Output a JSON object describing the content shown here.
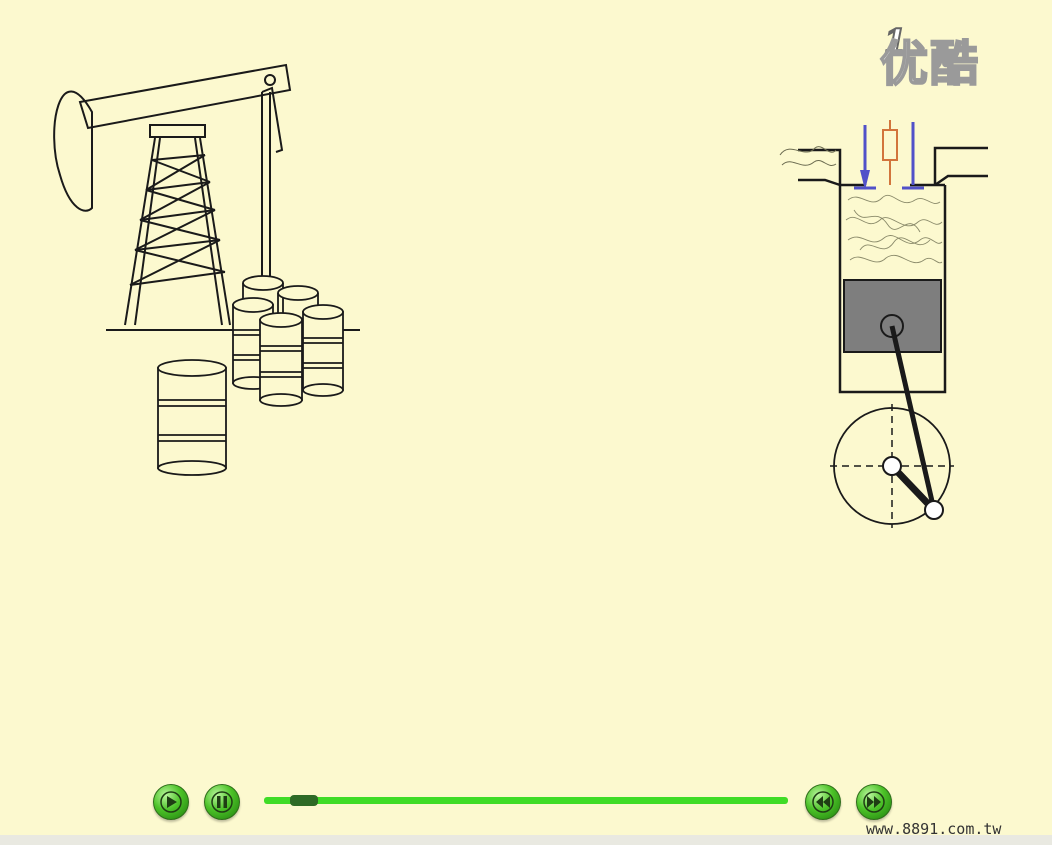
{
  "watermark": {
    "logo_text": "优酷",
    "badge_digit": "1"
  },
  "player": {
    "progress_fraction": 0.05,
    "url_text": "www.8891.com.tw"
  },
  "colors": {
    "background": "#fcf9cf",
    "button_green": "#4cc228",
    "progress_green": "#3fdc27",
    "thumb": "#2e6a26",
    "piston_gray": "#7e7e7e",
    "valve_blue": "#5151c9",
    "spark_orange": "#d2753c"
  },
  "icons": {
    "play": "play-icon",
    "pause": "pause-icon",
    "rewind": "rewind-icon",
    "fast_forward": "fast-forward-icon"
  }
}
